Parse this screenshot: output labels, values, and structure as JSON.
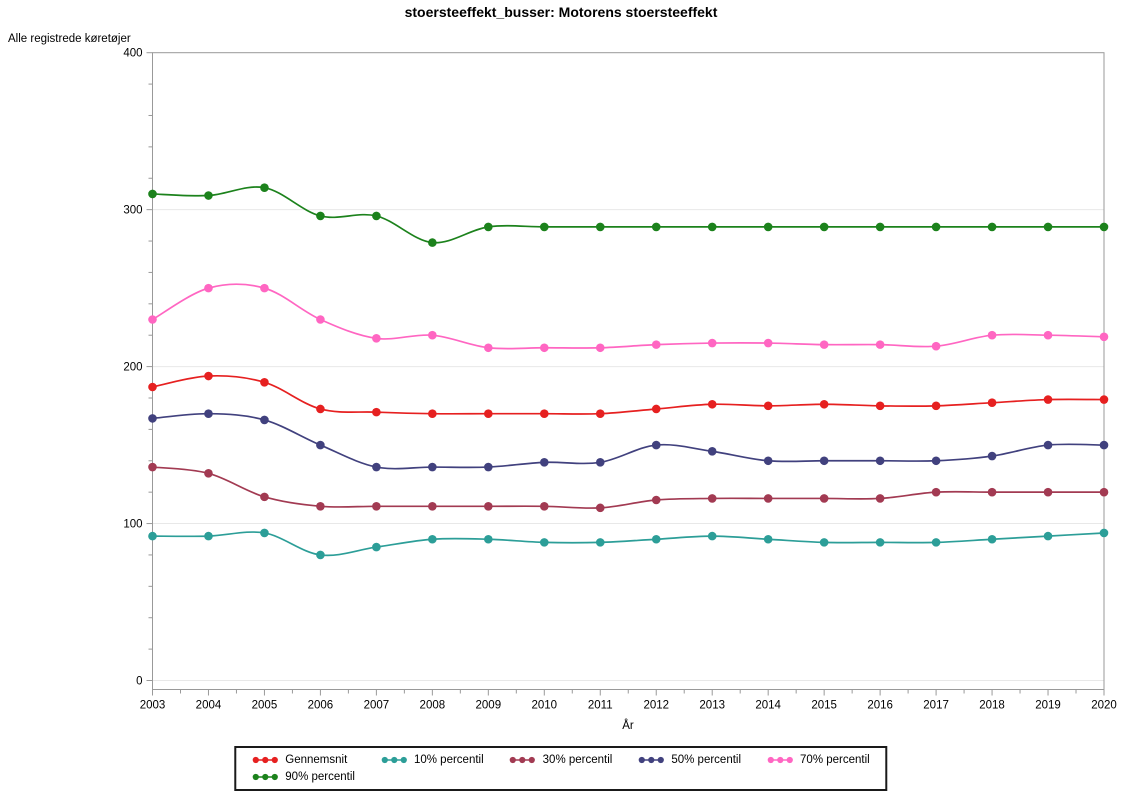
{
  "chart_data": {
    "type": "line",
    "title": "stoersteeffekt_busser: Motorens stoersteeffekt",
    "xlabel": "År",
    "ylabel": "Alle registrede køretøjer",
    "x": [
      2003,
      2004,
      2005,
      2006,
      2007,
      2008,
      2009,
      2010,
      2011,
      2012,
      2013,
      2014,
      2015,
      2016,
      2017,
      2018,
      2019,
      2020
    ],
    "xlim": [
      2003,
      2020
    ],
    "ylim": [
      0,
      400
    ],
    "yticks": [
      0,
      100,
      200,
      300,
      400
    ],
    "y_minor_step": 20,
    "x_minor_step": 0.5,
    "grid": "horizontal",
    "gridline_color": "#e8e8e8",
    "axis_color": "#999999",
    "marker_style": "filled-circle",
    "legend_position": "bottom",
    "series": [
      {
        "name": "Gennemsnit",
        "color": "#e62020",
        "values": [
          187,
          194,
          190,
          173,
          171,
          170,
          170,
          170,
          170,
          173,
          176,
          175,
          176,
          175,
          175,
          177,
          179,
          179
        ]
      },
      {
        "name": "10% percentil",
        "color": "#2c9e98",
        "values": [
          92,
          92,
          94,
          80,
          85,
          90,
          90,
          88,
          88,
          90,
          92,
          90,
          88,
          88,
          88,
          90,
          92,
          94
        ]
      },
      {
        "name": "30% percentil",
        "color": "#a23a52",
        "values": [
          136,
          132,
          117,
          111,
          111,
          111,
          111,
          111,
          110,
          115,
          116,
          116,
          116,
          116,
          120,
          120,
          120,
          120
        ]
      },
      {
        "name": "50% percentil",
        "color": "#41417e",
        "values": [
          167,
          170,
          166,
          150,
          136,
          136,
          136,
          139,
          139,
          150,
          146,
          140,
          140,
          140,
          140,
          143,
          150,
          150
        ]
      },
      {
        "name": "70% percentil",
        "color": "#ff66c2",
        "values": [
          230,
          250,
          250,
          230,
          218,
          220,
          212,
          212,
          212,
          214,
          215,
          215,
          214,
          214,
          213,
          220,
          220,
          219
        ]
      },
      {
        "name": "90% percentil",
        "color": "#1c821c",
        "values": [
          310,
          309,
          314,
          296,
          296,
          279,
          289,
          289,
          289,
          289,
          289,
          289,
          289,
          289,
          289,
          289,
          289,
          289
        ]
      }
    ]
  }
}
